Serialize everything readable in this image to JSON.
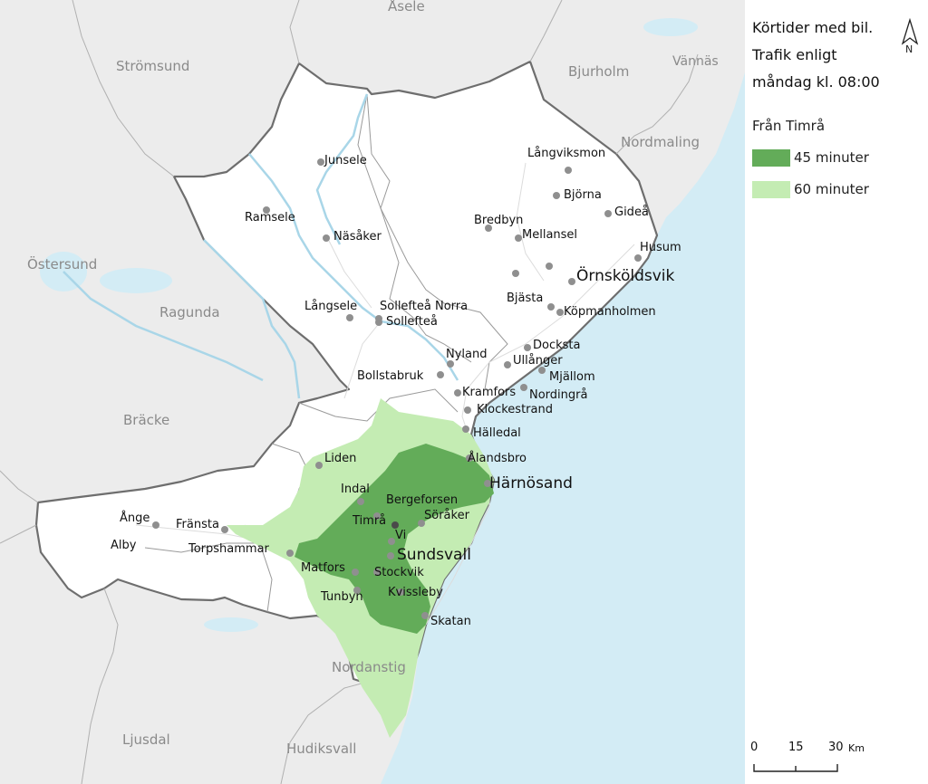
{
  "legend": {
    "title_lines": [
      "Körtider med bil.",
      "Trafik enligt",
      "måndag kl. 08:00"
    ],
    "from_label": "Från Timrå",
    "classes": [
      {
        "label": "45 minuter",
        "color": "#63ac59"
      },
      {
        "label": "60 minuter",
        "color": "#c4ecb3"
      }
    ],
    "north_label": "N",
    "scale": {
      "ticks": [
        "0",
        "15",
        "30"
      ],
      "unit": "Km"
    }
  },
  "colors": {
    "water": "#d3ecf5",
    "land_outside": "#ececec",
    "region": "#ffffff",
    "border": "#6e6e6e",
    "river": "#a9d6e8",
    "place_dot": "#8f8f8f"
  },
  "region_labels": {
    "asele": "Åsele",
    "stromsund": "Strömsund",
    "bjurholm": "Bjurholm",
    "vannas": "Vännäs",
    "nordmaling": "Nordmaling",
    "ostersund": "Östersund",
    "ragunda": "Ragunda",
    "bracke": "Bräcke",
    "ljusdal": "Ljusdal",
    "hudiksvall": "Hudiksvall",
    "nordanstig": "Nordanstig"
  },
  "places": {
    "junsele": "Junsele",
    "ramsele": "Ramsele",
    "nasaker": "Näsåker",
    "langsele": "Långsele",
    "solleftea_norra": "Sollefteå Norra",
    "solleftea": "Sollefteå",
    "bollstabruk": "Bollstabruk",
    "nyland": "Nyland",
    "langviksmon": "Långviksmon",
    "bjorna": "Björna",
    "gidea": "Gideå",
    "bredbyn": "Bredbyn",
    "mellansel": "Mellansel",
    "husum": "Husum",
    "ornskoldsvik": "Örnsköldsvik",
    "bjasta": "Bjästa",
    "kopmanholmen": "Köpmanholmen",
    "docksta": "Docksta",
    "ullanger": "Ullånger",
    "mjallom": "Mjällom",
    "kramfors": "Kramfors",
    "nordingra": "Nordingrå",
    "klockestrand": "Klockestrand",
    "halledal": "Hälledal",
    "alandsbro": "Ålandsbro",
    "harnosand": "Härnösand",
    "liden": "Liden",
    "indal": "Indal",
    "bergeforsen": "Bergeforsen",
    "soraker": "Söråker",
    "timra": "Timrå",
    "vi": "Vi",
    "sundsvall": "Sundsvall",
    "ange": "Ånge",
    "franst": "Fränsta",
    "alby": "Alby",
    "torpshammar": "Torpshammar",
    "matfors": "Matfors",
    "stockvik": "Stockvik",
    "tunbyn": "Tunbyn",
    "kvissleby": "Kvissleby",
    "skatan": "Skatan"
  }
}
